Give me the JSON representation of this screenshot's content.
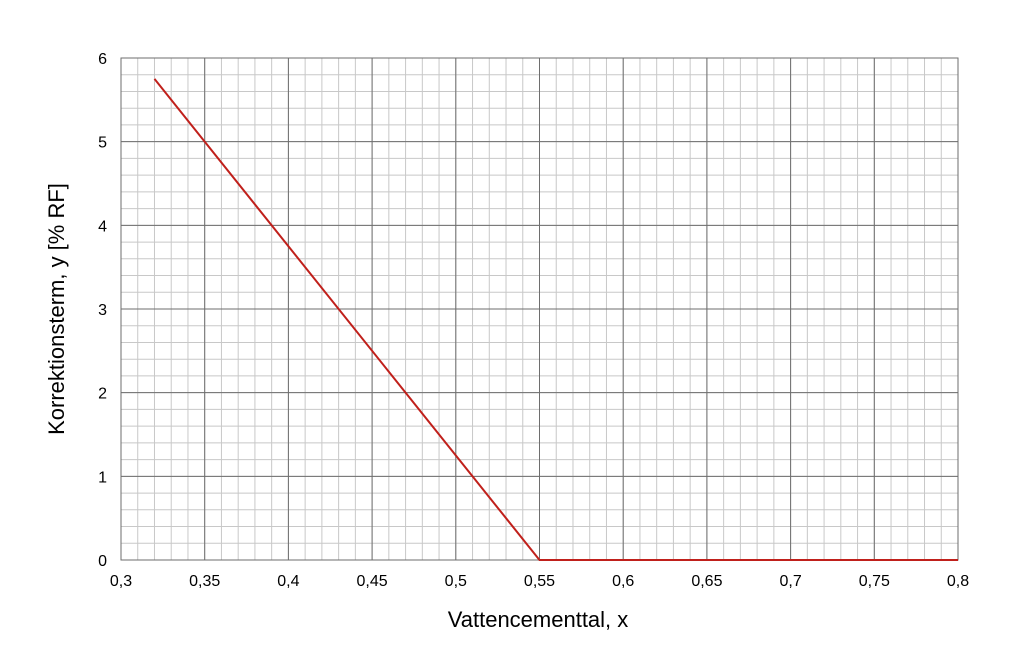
{
  "chart_data": {
    "type": "line",
    "xlabel": "Vattencementtal, x",
    "ylabel": "Korrektionsterm, y [% RF]",
    "xlim": [
      0.3,
      0.8
    ],
    "ylim": [
      0,
      6
    ],
    "x_ticks": [
      "0,3",
      "0,35",
      "0,4",
      "0,45",
      "0,5",
      "0,55",
      "0,6",
      "0,65",
      "0,7",
      "0,75",
      "0,8"
    ],
    "y_ticks": [
      "0",
      "1",
      "2",
      "3",
      "4",
      "5",
      "6"
    ],
    "grid": {
      "major": true,
      "minor": true,
      "major_x_step": 0.05,
      "major_y_step": 1,
      "minor_x_step": 0.01,
      "minor_y_step": 0.2
    },
    "series": [
      {
        "color": "#c0201b",
        "points": [
          [
            0.32,
            5.75
          ],
          [
            0.55,
            0
          ],
          [
            0.8,
            0
          ]
        ]
      }
    ]
  }
}
